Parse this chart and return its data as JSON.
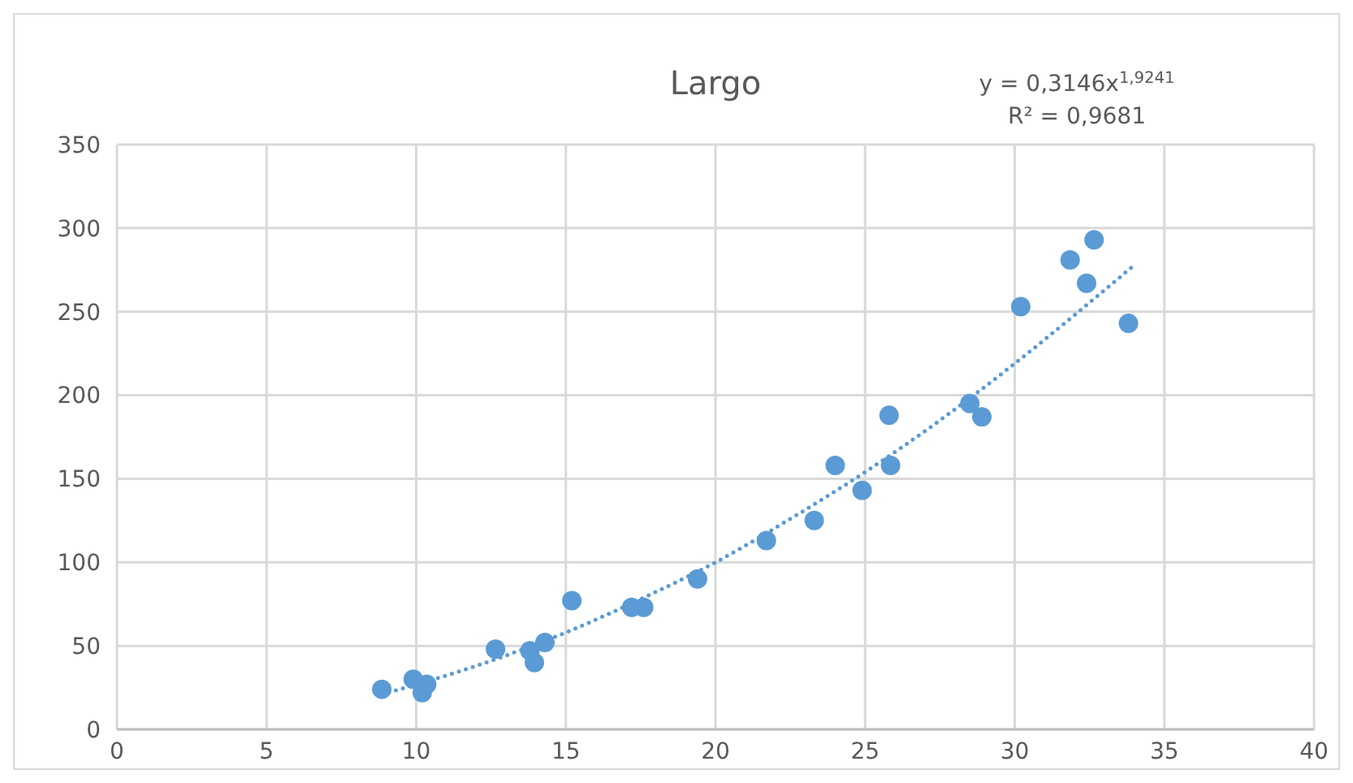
{
  "chart_data": {
    "type": "scatter",
    "title": "Largo",
    "annotations": [
      "y = 0,3146x$^{1,9241}$",
      "R² = 0,9681"
    ],
    "xlim": [
      0,
      40
    ],
    "xticks": [
      0,
      5,
      10,
      15,
      20,
      25,
      30,
      35,
      40
    ],
    "ylim": [
      0,
      350
    ],
    "yticks": [
      0,
      50,
      100,
      150,
      200,
      250,
      300,
      350
    ],
    "grid": true,
    "series": [
      {
        "color": "#5b9bd5",
        "marker": "circle",
        "x": [
          8.85,
          9.9,
          10.2,
          10.35,
          12.65,
          13.8,
          13.95,
          14.3,
          15.2,
          17.2,
          17.6,
          19.4,
          21.7,
          23.3,
          24.0,
          24.9,
          25.8,
          25.85,
          28.5,
          28.9,
          30.2,
          31.85,
          32.4,
          32.65,
          33.8
        ],
        "values": [
          24,
          30,
          22,
          27,
          48,
          47,
          40,
          52,
          77,
          73,
          73,
          90,
          113,
          125,
          158,
          143,
          188,
          158,
          195,
          187,
          253,
          281,
          267,
          293,
          243
        ]
      },
      {
        "type": "line",
        "color": "#5b9bd5",
        "marker": "none",
        "line_style": "dotted",
        "x": [
          8.85,
          12,
          15,
          17.5,
          20,
          22.5,
          25,
          27.5,
          30,
          32,
          34
        ],
        "values": [
          21,
          38,
          58,
          78,
          100,
          126,
          154,
          185,
          219,
          248,
          278
        ]
      }
    ]
  }
}
